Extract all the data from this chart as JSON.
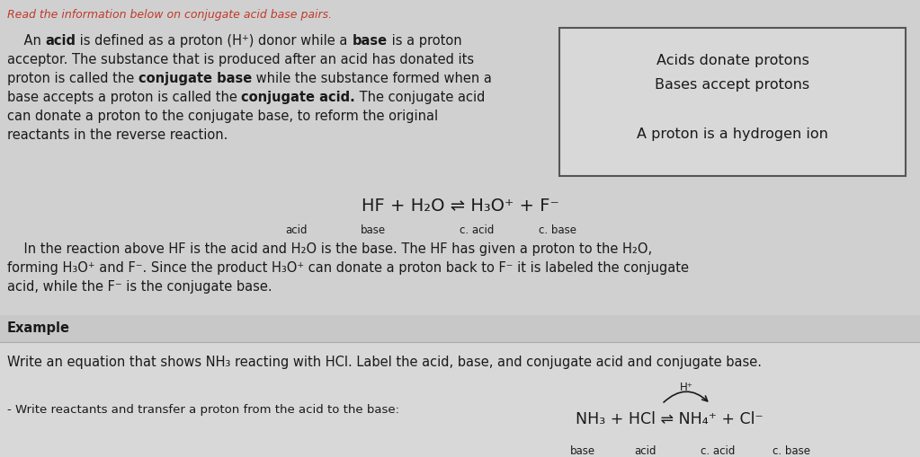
{
  "bg_color": "#d0d0d0",
  "title_text": "Read the information below on conjugate acid base pairs.",
  "title_color": "#c0392b",
  "box_line1": "Acids donate protons",
  "box_line2": "Bases accept protons",
  "box_line3": "A proton is a hydrogen ion",
  "equation1": "HF + H₂O ⇌ H₃O⁺ + F⁻",
  "labels1": [
    "acid",
    "base",
    "c. acid",
    "c. base"
  ],
  "example_label": "Example",
  "example_question": "Write an equation that shows NH₃ reacting with HCl. Label the acid, base, and conjugate acid and conjugate base.",
  "step_text": "- Write reactants and transfer a proton from the acid to the base:",
  "equation2": "NH₃ + HCl ⇌ NH₄⁺ + Cl⁻",
  "labels2": [
    "base",
    "acid",
    "c. acid",
    "c. base"
  ],
  "arrow_label": "H⁺",
  "font_color": "#1a1a1a",
  "example_section_bg": "#c8c8c8",
  "box_bg": "#d8d8d8",
  "white_section_bg": "#d8d8d8",
  "fig_width": 10.23,
  "fig_height": 5.1,
  "dpi": 100
}
